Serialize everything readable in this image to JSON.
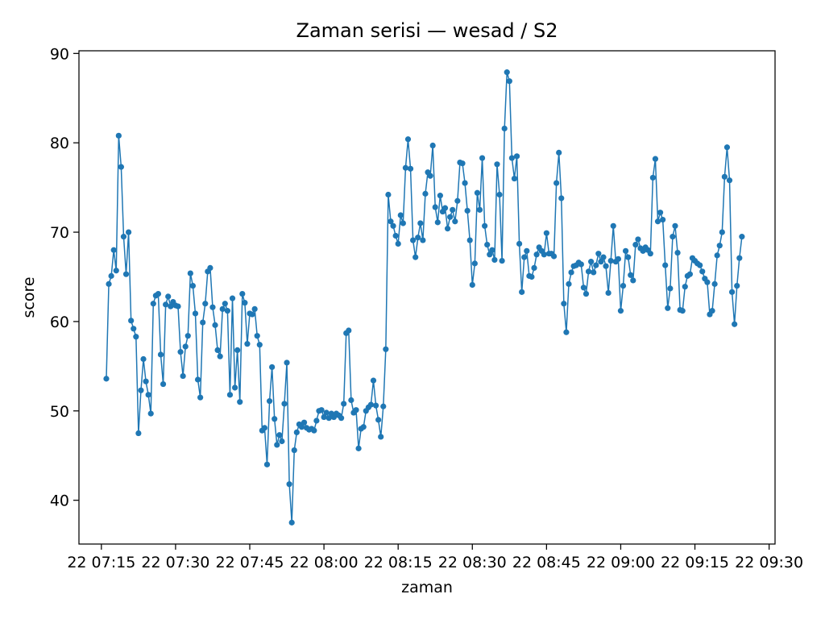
{
  "chart_data": {
    "type": "line",
    "title": "Zaman serisi — wesad / S2",
    "xlabel": "zaman",
    "ylabel": "score",
    "x_start": "2024-01-22T07:16:00",
    "x_step_minutes": 0.5,
    "y_ticks": [
      "40",
      "50",
      "60",
      "70",
      "80",
      "90"
    ],
    "x_ticks": [
      "22 07:15",
      "22 07:30",
      "22 07:45",
      "22 08:00",
      "22 08:15",
      "22 08:30",
      "22 08:45",
      "22 09:00",
      "22 09:15",
      "22 09:30"
    ],
    "ylim": [
      35.1,
      90.3
    ],
    "xlim": [
      "2024-01-22T07:10:28",
      "2024-01-22T09:31:12"
    ],
    "grid": false,
    "marker": "circle",
    "series": [
      {
        "color": "#1f77b4",
        "values": [
          53.6,
          64.2,
          65.1,
          68,
          65.7,
          80.8,
          77.3,
          69.5,
          65.3,
          70,
          60.1,
          59.2,
          58.3,
          47.5,
          52.3,
          55.8,
          53.3,
          51.8,
          49.7,
          62,
          62.9,
          63.1,
          56.3,
          53,
          61.9,
          62.8,
          61.7,
          62.2,
          61.8,
          61.7,
          56.6,
          53.9,
          57.2,
          58.4,
          65.4,
          64,
          60.9,
          53.5,
          51.5,
          59.9,
          62,
          65.6,
          66,
          61.6,
          59.6,
          56.8,
          56.1,
          61.4,
          62,
          61.2,
          51.8,
          62.6,
          52.6,
          56.8,
          51,
          63.1,
          62.1,
          57.5,
          60.9,
          60.8,
          61.4,
          58.4,
          57.4,
          47.8,
          48.1,
          44,
          51.1,
          54.9,
          49.1,
          46.2,
          47.3,
          46.6,
          50.8,
          55.4,
          41.8,
          37.5,
          45.6,
          47.6,
          48.5,
          48.2,
          48.7,
          48.1,
          47.9,
          48,
          47.8,
          48.9,
          50,
          50.1,
          49.3,
          49.8,
          49.2,
          49.7,
          49.3,
          49.7,
          49.5,
          49.2,
          50.8,
          58.7,
          59,
          51.2,
          49.8,
          50.1,
          45.8,
          48,
          48.2,
          50,
          50.4,
          50.7,
          53.4,
          50.6,
          49,
          47.1,
          50.5,
          56.9,
          74.2,
          71.2,
          70.7,
          69.6,
          68.7,
          71.9,
          71,
          77.2,
          80.4,
          77.1,
          69.1,
          67.2,
          69.4,
          71,
          69.1,
          74.3,
          76.7,
          76.3,
          79.7,
          72.8,
          71.1,
          74.1,
          72.3,
          72.7,
          70.4,
          71.7,
          72.5,
          71.2,
          73.5,
          77.8,
          77.7,
          75.5,
          72.4,
          69.1,
          64.1,
          66.5,
          74.4,
          72.5,
          78.3,
          70.7,
          68.6,
          67.5,
          68,
          66.9,
          77.6,
          74.2,
          66.8,
          81.6,
          87.9,
          86.9,
          78.3,
          76,
          78.5,
          68.7,
          63.3,
          67.2,
          67.9,
          65.1,
          65,
          66,
          67.5,
          68.3,
          67.9,
          67.5,
          69.9,
          67.6,
          67.6,
          67.3,
          75.5,
          78.9,
          73.8,
          62,
          58.8,
          64.2,
          65.5,
          66.2,
          66.3,
          66.6,
          66.4,
          63.8,
          63.1,
          65.6,
          66.7,
          65.5,
          66.3,
          67.6,
          66.7,
          67.2,
          66.2,
          63.2,
          66.8,
          70.7,
          66.7,
          67,
          61.2,
          64,
          67.9,
          67.2,
          65.2,
          64.6,
          68.6,
          69.2,
          68.2,
          67.9,
          68.3,
          68,
          67.6,
          76.1,
          78.2,
          71.2,
          72.2,
          71.4,
          66.3,
          61.5,
          63.7,
          69.5,
          70.7,
          67.7,
          61.3,
          61.2,
          63.9,
          65.1,
          65.3,
          67.1,
          66.8,
          66.5,
          66.3,
          65.6,
          64.8,
          64.4,
          60.8,
          61.2,
          64.2,
          67.4,
          68.5,
          70,
          76.2,
          79.5,
          75.8,
          63.3,
          59.7,
          64,
          67.1,
          69.5
        ]
      }
    ]
  }
}
